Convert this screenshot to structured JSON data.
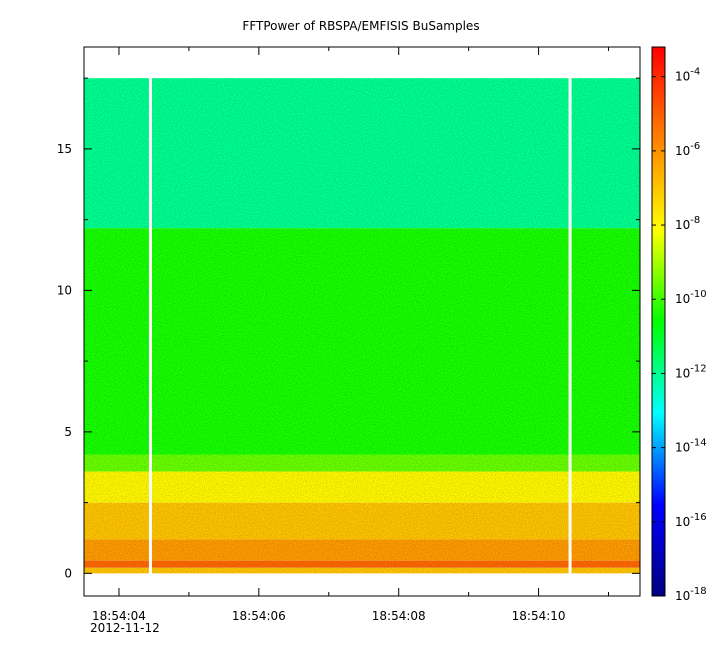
{
  "chart_data": {
    "type": "heatmap",
    "title": "FFTPower of RBSPA/EMFISIS  BuSamples",
    "x_axis": {
      "ticks": [
        {
          "label": "18:54:04",
          "t": 4
        },
        {
          "label": "18:54:06",
          "t": 6
        },
        {
          "label": "18:54:08",
          "t": 8
        },
        {
          "label": "18:54:10",
          "t": 10
        }
      ],
      "minor_ticks": [
        5,
        7,
        9,
        11
      ],
      "date_label": "2012-11-12",
      "range_seconds": [
        3.5,
        11.45
      ]
    },
    "y_axis": {
      "range": [
        -0.8,
        18.6
      ],
      "ticks": [
        0,
        5,
        10,
        15
      ],
      "minor_ticks": [
        2.5,
        7.5,
        12.5,
        17.5
      ]
    },
    "data_extent": {
      "y": [
        0.0,
        17.5
      ],
      "x_seconds": [
        3.5,
        11.45
      ]
    },
    "gaps_seconds": [
      4.45,
      10.45
    ],
    "bands": [
      {
        "y": [
          0.0,
          0.2
        ],
        "log_power": -7.0
      },
      {
        "y": [
          0.2,
          0.45
        ],
        "log_power": -5.2
      },
      {
        "y": [
          0.45,
          1.2
        ],
        "log_power": -6.2
      },
      {
        "y": [
          1.2,
          2.5
        ],
        "log_power": -7.0
      },
      {
        "y": [
          2.5,
          3.6
        ],
        "log_power": -8.0
      },
      {
        "y": [
          3.6,
          4.2
        ],
        "log_power": -9.6
      },
      {
        "y": [
          4.2,
          12.2
        ],
        "log_power": -10.4
      },
      {
        "y": [
          12.2,
          17.5
        ],
        "log_power": -12.0
      }
    ],
    "colorbar": {
      "scale": "log",
      "range_exponent": [
        -18,
        -3.2
      ],
      "ticks": [
        {
          "label": "10",
          "exp": "-4",
          "value": -4
        },
        {
          "label": "10",
          "exp": "-6",
          "value": -6
        },
        {
          "label": "10",
          "exp": "-8",
          "value": -8
        },
        {
          "label": "10",
          "exp": "-10",
          "value": -10
        },
        {
          "label": "10",
          "exp": "-12",
          "value": -12
        },
        {
          "label": "10",
          "exp": "-14",
          "value": -14
        },
        {
          "label": "10",
          "exp": "-16",
          "value": -16
        },
        {
          "label": "10",
          "exp": "-18",
          "value": -18
        }
      ],
      "colors": [
        "#000080",
        "#0000ff",
        "#00ffff",
        "#00ff00",
        "#ffff00",
        "#ff8000",
        "#ff0000"
      ]
    }
  }
}
